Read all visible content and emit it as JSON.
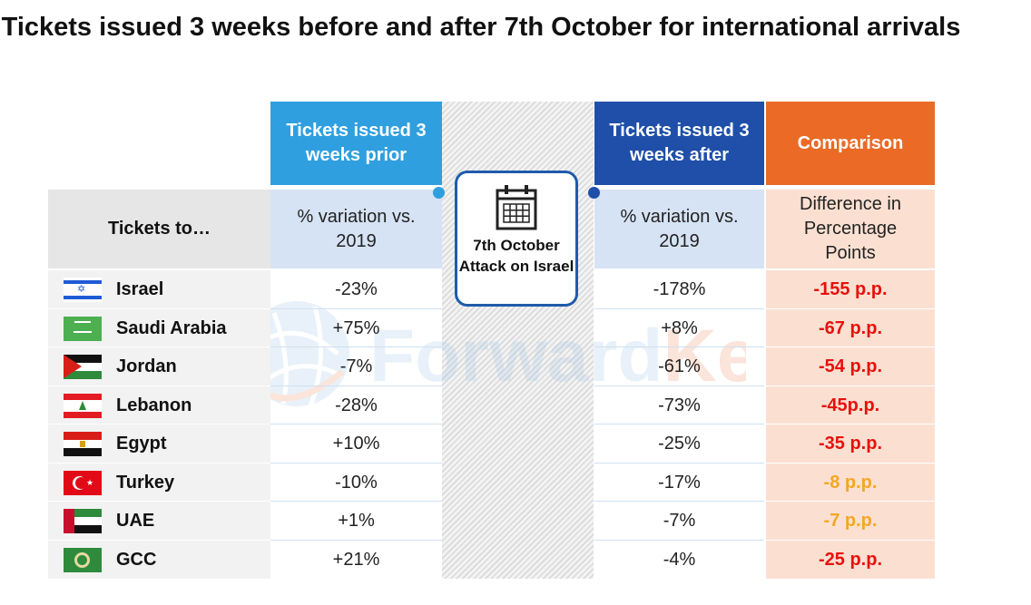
{
  "title": "Tickets issued 3 weeks before and after 7th October for international arrivals",
  "headers": {
    "prior": "Tickets issued 3 weeks prior",
    "after": "Tickets issued 3 weeks after",
    "comparison": "Comparison"
  },
  "subheaders": {
    "tickets_to": "Tickets to…",
    "prior": "% variation vs. 2019",
    "after": "% variation vs. 2019",
    "comparison": "Difference in Percentage Points"
  },
  "event_label": "7th October Attack on Israel",
  "watermark_text": "ForwardKeys",
  "colors": {
    "prior_header": "#2f9fe0",
    "after_header": "#1f4fa8",
    "comparison_header": "#ea6a26",
    "sub_blue": "#d6e3f4",
    "comparison_bg": "#fbe0d2",
    "negative_strong": "#e8110d",
    "negative_mild": "#f5a623"
  },
  "rows": [
    {
      "country": "Israel",
      "flag": "israel",
      "prior": "-23%",
      "after": "-178%",
      "comparison": "-155 p.p.",
      "severity": "strong"
    },
    {
      "country": "Saudi Arabia",
      "flag": "saudi",
      "prior": "+75%",
      "after": "+8%",
      "comparison": "-67 p.p.",
      "severity": "strong"
    },
    {
      "country": "Jordan",
      "flag": "jordan",
      "prior": "-7%",
      "after": "-61%",
      "comparison": "-54 p.p.",
      "severity": "strong"
    },
    {
      "country": "Lebanon",
      "flag": "lebanon",
      "prior": "-28%",
      "after": "-73%",
      "comparison": "-45p.p.",
      "severity": "strong"
    },
    {
      "country": "Egypt",
      "flag": "egypt",
      "prior": "+10%",
      "after": "-25%",
      "comparison": "-35 p.p.",
      "severity": "strong"
    },
    {
      "country": "Turkey",
      "flag": "turkey",
      "prior": "-10%",
      "after": "-17%",
      "comparison": "-8 p.p.",
      "severity": "mild"
    },
    {
      "country": "UAE",
      "flag": "uae",
      "prior": "+1%",
      "after": "-7%",
      "comparison": "-7 p.p.",
      "severity": "mild"
    },
    {
      "country": "GCC",
      "flag": "gcc",
      "prior": "+21%",
      "after": "-4%",
      "comparison": "-25 p.p.",
      "severity": "strong"
    }
  ]
}
